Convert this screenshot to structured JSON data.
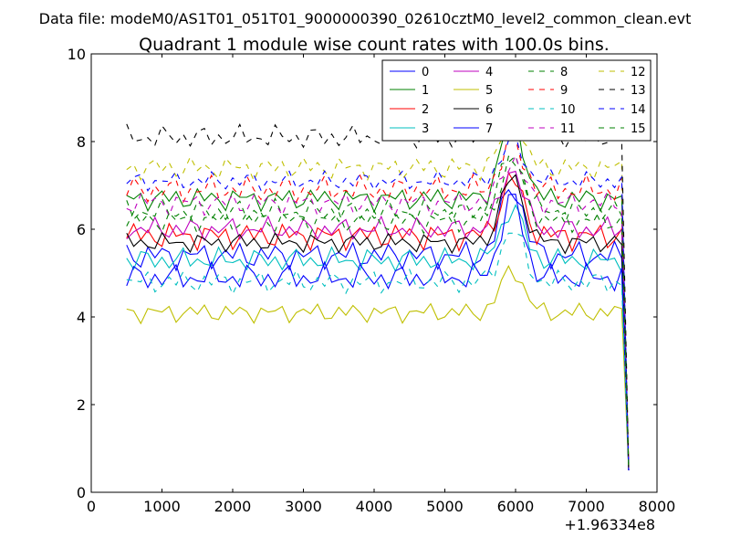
{
  "chart_data": {
    "type": "line",
    "suptitle": "Data file: modeM0/AS1T01_051T01_9000000390_02610cztM0_level2_common_clean.evt",
    "title": "Quadrant 1 module wise count rates with 100.0s bins.",
    "xlabel": "",
    "ylabel": "",
    "x_offset_label": "+1.96334e8",
    "xlim": [
      0,
      8000
    ],
    "ylim": [
      0,
      10
    ],
    "xticks": [
      0,
      1000,
      2000,
      3000,
      4000,
      5000,
      6000,
      7000,
      8000
    ],
    "yticks": [
      0,
      2,
      4,
      6,
      8,
      10
    ],
    "xtick_labels": [
      "0",
      "1000",
      "2000",
      "3000",
      "4000",
      "5000",
      "6000",
      "7000",
      "8000"
    ],
    "ytick_labels": [
      "0",
      "2",
      "4",
      "6",
      "8",
      "10"
    ],
    "grid": false,
    "legend_position": "top-right",
    "x": [
      500,
      600,
      700,
      800,
      900,
      1000,
      1100,
      1200,
      1300,
      1400,
      1500,
      1600,
      1700,
      1800,
      1900,
      2000,
      2100,
      2200,
      2300,
      2400,
      2500,
      2600,
      2700,
      2800,
      2900,
      3000,
      3100,
      3200,
      3300,
      3400,
      3500,
      3600,
      3700,
      3800,
      3900,
      4000,
      4100,
      4200,
      4300,
      4400,
      4500,
      4600,
      4700,
      4800,
      4900,
      5000,
      5100,
      5200,
      5300,
      5400,
      5500,
      5600,
      5700,
      5800,
      5900,
      6000,
      6100,
      6200,
      6300,
      6400,
      6500,
      6600,
      6700,
      6800,
      6900,
      7000,
      7100,
      7200,
      7300,
      7400,
      7500,
      7600
    ],
    "end_value": 0.5,
    "series": [
      {
        "name": "0",
        "color": "#0000ff",
        "dashed": false,
        "base": 5.4,
        "amp": 0.35,
        "peak": 1.6,
        "phase": 0.3
      },
      {
        "name": "1",
        "color": "#008000",
        "dashed": false,
        "base": 6.7,
        "amp": 0.3,
        "peak": 1.9,
        "phase": 1.1
      },
      {
        "name": "2",
        "color": "#ff0000",
        "dashed": false,
        "base": 5.85,
        "amp": 0.35,
        "peak": 1.3,
        "phase": 2.0
      },
      {
        "name": "3",
        "color": "#00bfbf",
        "dashed": false,
        "base": 5.3,
        "amp": 0.3,
        "peak": 1.2,
        "phase": 2.7
      },
      {
        "name": "4",
        "color": "#bf00bf",
        "dashed": false,
        "base": 6.0,
        "amp": 0.3,
        "peak": 1.4,
        "phase": 3.4
      },
      {
        "name": "5",
        "color": "#bfbf00",
        "dashed": false,
        "base": 4.1,
        "amp": 0.25,
        "peak": 1.0,
        "phase": 4.1
      },
      {
        "name": "6",
        "color": "#000000",
        "dashed": false,
        "base": 5.7,
        "amp": 0.25,
        "peak": 1.5,
        "phase": 4.8
      },
      {
        "name": "7",
        "color": "#0000ff",
        "dashed": false,
        "base": 4.9,
        "amp": 0.35,
        "peak": 1.8,
        "phase": 5.5
      },
      {
        "name": "8",
        "color": "#008000",
        "dashed": true,
        "base": 6.4,
        "amp": 0.3,
        "peak": 1.3,
        "phase": 0.7
      },
      {
        "name": "9",
        "color": "#ff0000",
        "dashed": true,
        "base": 6.9,
        "amp": 0.35,
        "peak": 1.1,
        "phase": 1.5
      },
      {
        "name": "10",
        "color": "#00bfbf",
        "dashed": true,
        "base": 4.8,
        "amp": 0.3,
        "peak": 1.2,
        "phase": 2.3
      },
      {
        "name": "11",
        "color": "#bf00bf",
        "dashed": true,
        "base": 6.6,
        "amp": 0.3,
        "peak": 1.0,
        "phase": 3.1
      },
      {
        "name": "12",
        "color": "#bfbf00",
        "dashed": true,
        "base": 7.4,
        "amp": 0.3,
        "peak": 1.0,
        "phase": 3.9
      },
      {
        "name": "13",
        "color": "#000000",
        "dashed": true,
        "base": 8.1,
        "amp": 0.3,
        "peak": 1.2,
        "phase": 4.6
      },
      {
        "name": "14",
        "color": "#0000ff",
        "dashed": true,
        "base": 7.1,
        "amp": 0.25,
        "peak": 0.9,
        "phase": 5.3
      },
      {
        "name": "15",
        "color": "#008000",
        "dashed": true,
        "base": 6.2,
        "amp": 0.3,
        "peak": 1.4,
        "phase": 6.0
      }
    ]
  }
}
